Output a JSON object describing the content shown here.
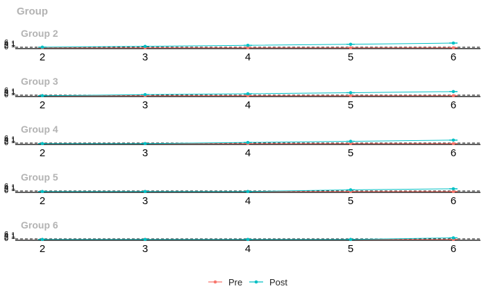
{
  "chart_data": {
    "type": "line",
    "title": "Group",
    "legend_position": "bottom",
    "x": [
      2,
      3,
      4,
      5,
      6
    ],
    "x_ticks": [
      "2",
      "3",
      "4",
      "5",
      "6"
    ],
    "y_ticks": [
      "0",
      "2",
      "4",
      "6"
    ],
    "y_tick_marks": [
      "1",
      "1"
    ],
    "ylim": [
      0,
      8
    ],
    "reference_line_y": 0,
    "colors": {
      "Pre": "#F8766D",
      "Post": "#00BFC4"
    },
    "legend": [
      "Pre",
      "Post"
    ],
    "panels": [
      {
        "title": "Group 2",
        "series": [
          {
            "name": "Pre",
            "values": [
              0.2,
              0.2,
              0.2,
              0.2,
              0.2
            ]
          },
          {
            "name": "Post",
            "values": [
              0.9,
              1.8,
              3.0,
              4.2,
              5.6
            ]
          }
        ]
      },
      {
        "title": "Group 3",
        "series": [
          {
            "name": "Pre",
            "values": [
              0.2,
              0.2,
              0.2,
              0.2,
              0.2
            ]
          },
          {
            "name": "Post",
            "values": [
              0.2,
              1.4,
              2.4,
              3.6,
              4.9
            ]
          }
        ]
      },
      {
        "title": "Group 4",
        "series": [
          {
            "name": "Pre",
            "values": [
              0.2,
              0.2,
              0.2,
              0.2,
              0.2
            ]
          },
          {
            "name": "Post",
            "values": [
              0.2,
              0.2,
              1.5,
              2.8,
              4.2
            ]
          }
        ]
      },
      {
        "title": "Group 5",
        "series": [
          {
            "name": "Pre",
            "values": [
              0.2,
              0.2,
              0.2,
              0.2,
              0.2
            ]
          },
          {
            "name": "Post",
            "values": [
              0.2,
              0.2,
              0.2,
              2.1,
              3.3
            ]
          }
        ]
      },
      {
        "title": "Group 6",
        "series": [
          {
            "name": "Pre",
            "values": [
              0.2,
              0.2,
              0.2,
              0.2,
              0.2
            ]
          },
          {
            "name": "Post",
            "values": [
              0.2,
              0.2,
              0.2,
              0.2,
              2.0
            ]
          }
        ]
      }
    ]
  }
}
